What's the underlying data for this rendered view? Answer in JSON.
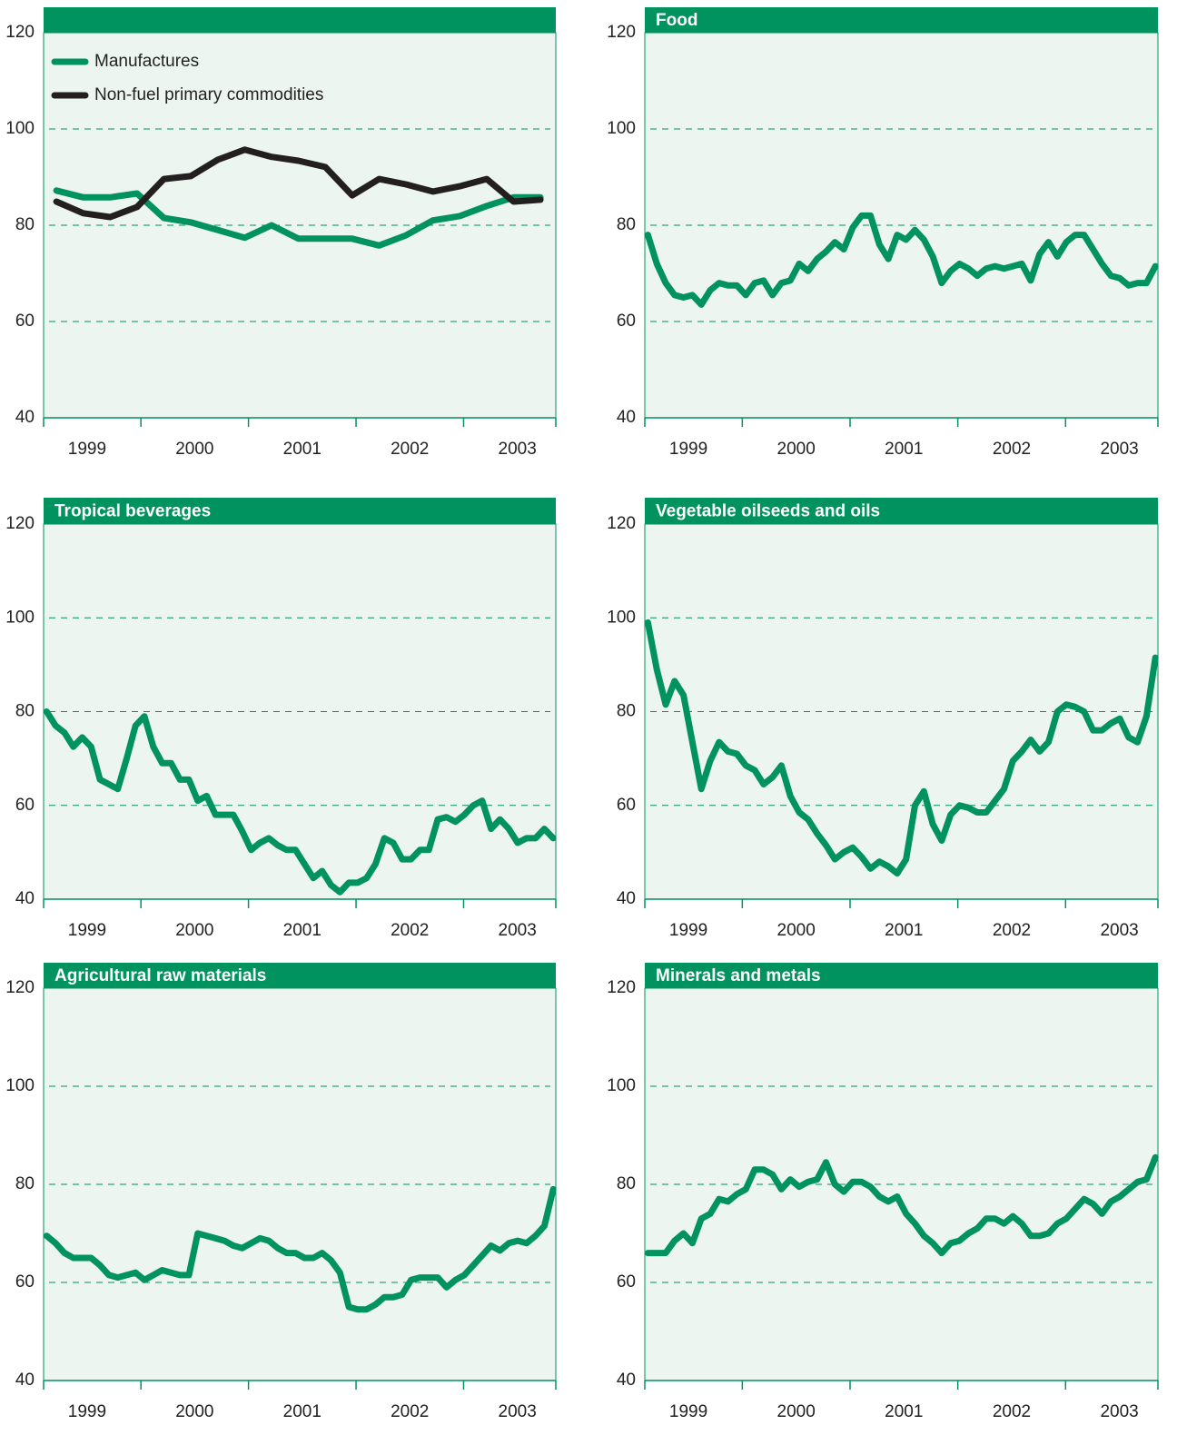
{
  "chart_data": [
    {
      "type": "line",
      "year_labels": [
        "1999",
        "2000",
        "2001",
        "2002",
        "2003"
      ],
      "ylim": [
        40,
        120
      ],
      "yticks": [
        40,
        60,
        80,
        100,
        120
      ],
      "grid": true,
      "legend": "upper left",
      "series": [
        {
          "name": "Manufactures",
          "color": "#00925f",
          "values": [
            87.2,
            85.8,
            85.8,
            86.6,
            81.5,
            80.6,
            79,
            77.4,
            80,
            77.2,
            77.2,
            77.2,
            75.8,
            77.9,
            81,
            81.9,
            84,
            85.8,
            85.8
          ]
        },
        {
          "name": "Non-fuel primary commodities",
          "color": "#231f20",
          "values": [
            84.9,
            82.5,
            81.7,
            83.8,
            89.6,
            90.2,
            93.6,
            95.7,
            94.2,
            93.4,
            92.1,
            86.2,
            89.6,
            88.5,
            87,
            88.1,
            89.6,
            84.9,
            85.3
          ]
        }
      ]
    },
    {
      "type": "line",
      "title": "Food",
      "year_labels": [
        "1999",
        "2000",
        "2001",
        "2002",
        "2003"
      ],
      "ylim": [
        40,
        120
      ],
      "yticks": [
        40,
        60,
        80,
        100,
        120
      ],
      "grid": true,
      "color": "#00925f",
      "values": [
        78,
        72,
        68,
        65.5,
        65,
        65.5,
        63.5,
        66.5,
        68,
        67.5,
        67.5,
        65.5,
        68,
        68.5,
        65.5,
        68,
        68.5,
        72,
        70.5,
        73,
        74.5,
        76.5,
        75,
        79.5,
        82,
        82,
        76,
        73,
        78,
        77,
        79,
        77,
        73.5,
        68,
        70.5,
        72,
        71,
        69.5,
        71,
        71.5,
        71,
        71.5,
        72,
        68.5,
        74,
        76.5,
        73.5,
        76.5,
        78,
        78,
        75,
        72,
        69.5,
        69,
        67.5,
        68,
        68,
        71.5
      ]
    },
    {
      "type": "line",
      "title": "Tropical beverages",
      "year_labels": [
        "1999",
        "2000",
        "2001",
        "2002",
        "2003"
      ],
      "ylim": [
        40,
        120
      ],
      "yticks": [
        40,
        60,
        80,
        100,
        120
      ],
      "grid": true,
      "color": "#00925f",
      "values": [
        80,
        77,
        75.5,
        72.5,
        74.5,
        72.5,
        65.5,
        64.5,
        63.5,
        70,
        77,
        79,
        72.5,
        69,
        69,
        65.5,
        65.5,
        61,
        62,
        58,
        58,
        58,
        54.5,
        50.5,
        52,
        53,
        51.5,
        50.5,
        50.5,
        47.5,
        44.5,
        46,
        43,
        41.5,
        43.5,
        43.5,
        44.5,
        47.5,
        53,
        52,
        48.5,
        48.5,
        50.5,
        50.5,
        57,
        57.5,
        56.5,
        58,
        60,
        61,
        55,
        57,
        55,
        52,
        53,
        53,
        55,
        53
      ]
    },
    {
      "type": "line",
      "title": "Vegetable oilseeds and oils",
      "year_labels": [
        "1999",
        "2000",
        "2001",
        "2002",
        "2003"
      ],
      "ylim": [
        40,
        120
      ],
      "yticks": [
        40,
        60,
        80,
        100,
        120
      ],
      "grid": true,
      "color": "#00925f",
      "values": [
        99,
        89,
        81.5,
        86.5,
        83.5,
        73.5,
        63.5,
        69.5,
        73.5,
        71.5,
        71,
        68.5,
        67.5,
        64.5,
        66,
        68.5,
        62,
        58.5,
        57,
        54,
        51.5,
        48.5,
        50,
        51,
        49,
        46.5,
        48,
        47,
        45.5,
        48.5,
        60,
        63,
        56,
        52.5,
        58,
        60,
        59.5,
        58.5,
        58.5,
        61,
        63.5,
        69.5,
        71.5,
        74,
        71.5,
        73.5,
        80,
        81.5,
        81,
        80,
        76,
        76,
        77.5,
        78.5,
        74.5,
        73.5,
        79,
        91.5
      ]
    },
    {
      "type": "line",
      "title": "Agricultural raw materials",
      "year_labels": [
        "1999",
        "2000",
        "2001",
        "2002",
        "2003"
      ],
      "ylim": [
        40,
        120
      ],
      "yticks": [
        40,
        60,
        80,
        100,
        120
      ],
      "grid": true,
      "color": "#00925f",
      "values": [
        69.5,
        68,
        66,
        65,
        65,
        65,
        63.5,
        61.5,
        61,
        61.5,
        62,
        60.5,
        61.5,
        62.5,
        62,
        61.5,
        61.5,
        70,
        69.5,
        69,
        68.5,
        67.5,
        67,
        68,
        69,
        68.5,
        67,
        66,
        66,
        65,
        65,
        66,
        64.5,
        62,
        55,
        54.5,
        54.5,
        55.5,
        57,
        57,
        57.5,
        60.5,
        61,
        61,
        61,
        59,
        60.5,
        61.5,
        63.5,
        65.5,
        67.5,
        66.5,
        68,
        68.5,
        68,
        69.5,
        71.5,
        79
      ]
    },
    {
      "type": "line",
      "title": "Minerals and metals",
      "year_labels": [
        "1999",
        "2000",
        "2001",
        "2002",
        "2003"
      ],
      "ylim": [
        40,
        120
      ],
      "yticks": [
        40,
        60,
        80,
        100,
        120
      ],
      "grid": true,
      "color": "#00925f",
      "values": [
        66,
        66,
        66,
        68.5,
        70,
        68,
        73,
        74,
        77,
        76.5,
        78,
        79,
        83,
        83,
        82,
        79,
        81,
        79.5,
        80.5,
        81,
        84.5,
        80,
        78.5,
        80.5,
        80.5,
        79.5,
        77.5,
        76.5,
        77.5,
        74,
        72,
        69.5,
        68,
        66,
        68,
        68.5,
        70,
        71,
        73,
        73,
        72,
        73.5,
        72,
        69.5,
        69.5,
        70,
        72,
        73,
        75,
        77,
        76,
        74,
        76.5,
        77.5,
        79,
        80.5,
        81,
        85.5
      ]
    }
  ]
}
